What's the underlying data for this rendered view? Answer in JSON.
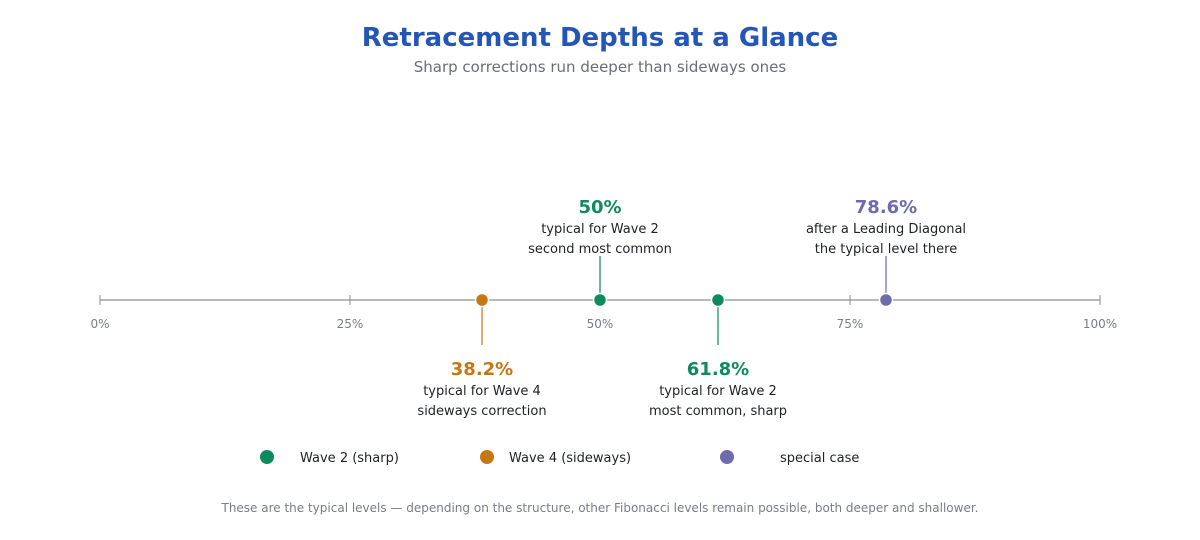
{
  "colors": {
    "title": "#2456b8",
    "axis": "#8a8d94",
    "wave2": "#0f8a5f",
    "wave4": "#c47712",
    "special": "#6e6aae"
  },
  "chart_data": {
    "type": "scatter",
    "title": "Retracement Depths at a Glance",
    "subtitle": "Sharp corrections run deeper than sideways ones",
    "xlim": [
      0,
      100
    ],
    "ticks": [
      {
        "value": 0,
        "label": "0%"
      },
      {
        "value": 25,
        "label": "25%"
      },
      {
        "value": 50,
        "label": "50%"
      },
      {
        "value": 75,
        "label": "75%"
      },
      {
        "value": 100,
        "label": "100%"
      }
    ],
    "points": [
      {
        "value": 38.2,
        "label": "38.2%",
        "series": "wave4",
        "side": "below",
        "lines": [
          "typical for Wave 4",
          "sideways correction"
        ]
      },
      {
        "value": 50,
        "label": "50%",
        "series": "wave2",
        "side": "above",
        "lines": [
          "typical for Wave 2",
          "second most common"
        ]
      },
      {
        "value": 61.8,
        "label": "61.8%",
        "series": "wave2",
        "side": "below",
        "lines": [
          "typical for Wave 2",
          "most common, sharp"
        ]
      },
      {
        "value": 78.6,
        "label": "78.6%",
        "series": "special",
        "side": "above",
        "lines": [
          "after a Leading Diagonal",
          "the typical level there"
        ]
      }
    ],
    "legend": [
      {
        "key": "wave2",
        "label": "Wave 2 (sharp)"
      },
      {
        "key": "wave4",
        "label": "Wave 4 (sideways)"
      },
      {
        "key": "special",
        "label": "special case"
      }
    ],
    "footnote": "These are the typical levels — depending on the structure, other Fibonacci levels remain possible, both deeper and shallower."
  }
}
